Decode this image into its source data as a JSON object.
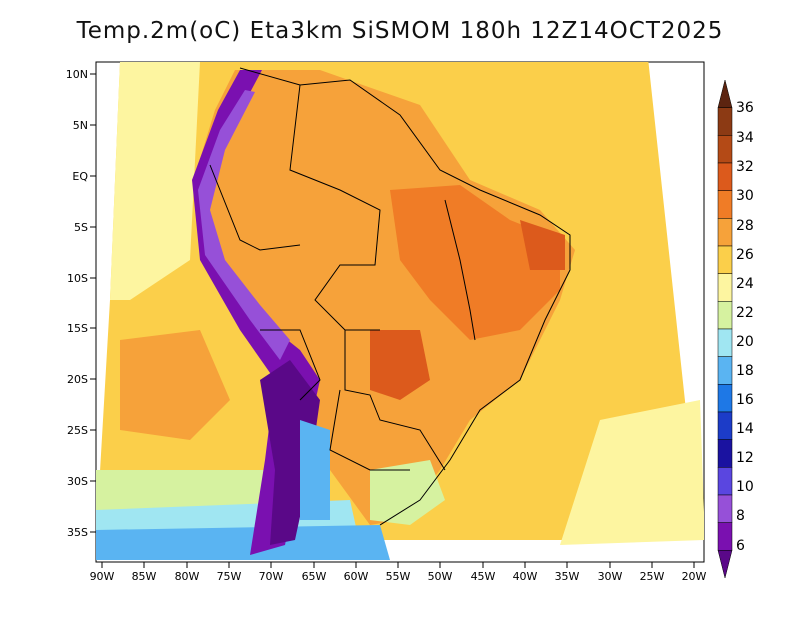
{
  "title": "Temp.2m(oC) Eta3km SiSMOM 180h 12Z14OCT2025",
  "map": {
    "lat_labels": [
      "10N",
      "5N",
      "EQ",
      "5S",
      "10S",
      "15S",
      "20S",
      "25S",
      "30S",
      "35S"
    ],
    "lon_labels": [
      "90W",
      "85W",
      "80W",
      "75W",
      "70W",
      "65W",
      "60W",
      "55W",
      "50W",
      "45W",
      "40W",
      "35W",
      "30W",
      "25W",
      "20W"
    ]
  },
  "colorbar": {
    "labels": [
      "36",
      "34",
      "32",
      "30",
      "28",
      "26",
      "24",
      "22",
      "20",
      "18",
      "16",
      "14",
      "12",
      "10",
      "8",
      "6"
    ],
    "colors": [
      "#5c2410",
      "#8c3a14",
      "#b44a16",
      "#dc5a1c",
      "#f07c26",
      "#f6a23a",
      "#fbcf4a",
      "#fdf5a0",
      "#d6f2a0",
      "#a0e6f2",
      "#5ab4f2",
      "#1e78e6",
      "#1c3cc8",
      "#1a12a0",
      "#5a46e0",
      "#9650d8",
      "#7a10b0",
      "#5a0888"
    ]
  }
}
